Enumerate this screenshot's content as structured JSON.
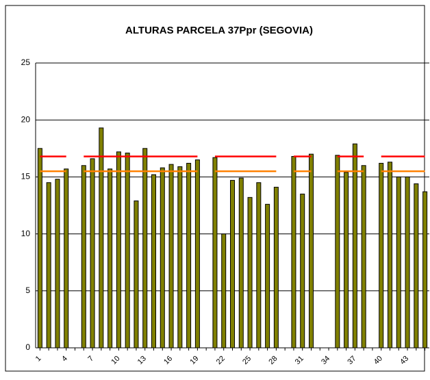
{
  "chart_data": {
    "type": "bar",
    "title": "ALTURAS PARCELA 37Ppr (SEGOVIA)",
    "categories": [
      "1",
      null,
      null,
      "4",
      null,
      null,
      "7",
      null,
      null,
      "10",
      null,
      null,
      "13",
      null,
      null,
      "16",
      null,
      null,
      "19",
      null,
      null,
      "22",
      null,
      null,
      "25",
      null,
      null,
      "28",
      null,
      null,
      "31",
      null,
      null,
      "34",
      null,
      null,
      "37",
      null,
      null,
      "40",
      null,
      null,
      "43",
      null,
      null
    ],
    "series": [
      {
        "type": "bar",
        "color": "#808000",
        "values": [
          17.5,
          14.5,
          14.8,
          15.7,
          null,
          16.0,
          16.6,
          19.3,
          15.7,
          17.2,
          17.1,
          12.9,
          17.5,
          15.2,
          15.8,
          16.1,
          15.9,
          16.2,
          16.5,
          null,
          16.7,
          10.0,
          14.7,
          14.9,
          13.2,
          14.5,
          12.6,
          14.1,
          null,
          16.8,
          13.5,
          17.0,
          null,
          null,
          16.9,
          15.4,
          17.9,
          16.0,
          null,
          16.2,
          16.3,
          15.0,
          15.0,
          14.4,
          13.7
        ]
      },
      {
        "type": "line",
        "color": "#ff0000",
        "values": [
          16.8,
          16.8,
          16.8,
          16.8,
          null,
          16.8,
          16.8,
          16.8,
          16.8,
          16.8,
          16.8,
          16.8,
          16.8,
          16.8,
          16.8,
          16.8,
          16.8,
          16.8,
          16.8,
          null,
          16.8,
          16.8,
          16.8,
          16.8,
          16.8,
          16.8,
          16.8,
          16.8,
          null,
          16.8,
          16.8,
          16.8,
          null,
          null,
          16.8,
          16.8,
          16.8,
          16.8,
          null,
          16.8,
          16.8,
          16.8,
          16.8,
          16.8,
          16.8
        ]
      },
      {
        "type": "line",
        "color": "#ff8000",
        "values": [
          15.5,
          15.5,
          15.5,
          15.5,
          null,
          15.5,
          15.5,
          15.5,
          15.5,
          15.5,
          15.5,
          15.5,
          15.5,
          15.5,
          15.5,
          15.5,
          15.5,
          15.5,
          15.5,
          null,
          15.5,
          15.5,
          15.5,
          15.5,
          15.5,
          15.5,
          15.5,
          15.5,
          null,
          15.5,
          15.5,
          15.5,
          null,
          null,
          15.5,
          15.5,
          15.5,
          15.5,
          null,
          15.5,
          15.5,
          15.5,
          15.5,
          15.5,
          15.5
        ]
      }
    ],
    "ylim": [
      0,
      25
    ],
    "yticks": [
      0,
      5,
      10,
      15,
      20,
      25
    ],
    "grid": true
  }
}
